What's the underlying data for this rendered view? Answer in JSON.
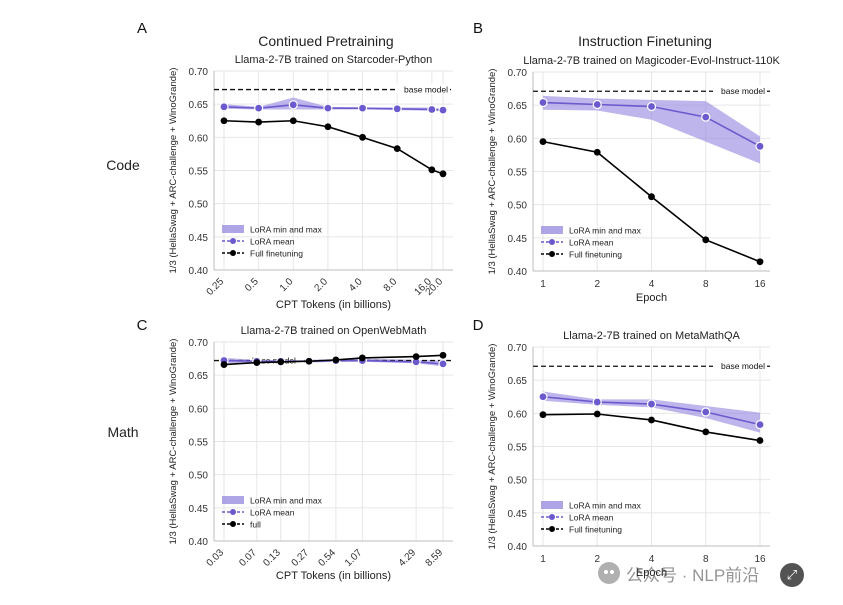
{
  "figure": {
    "col_titles": [
      "Continued Pretraining",
      "Instruction Finetuning"
    ],
    "row_labels": [
      "Code",
      "Math"
    ],
    "panel_letters": [
      "A",
      "B",
      "C",
      "D"
    ],
    "base_model_label": "base model",
    "colors": {
      "lora": "#6a5acd",
      "band": "#9a8ee0",
      "full": "#000000"
    }
  },
  "watermark": {
    "text": "公众号 · NLP前沿",
    "icon": "wechat-icon",
    "badge_icon": "resize-icon"
  },
  "chart_data": [
    {
      "type": "line",
      "panel": "A",
      "title": "Llama-2-7B trained on Starcoder-Python",
      "xlabel": "CPT Tokens (in billions)",
      "ylabel": "1/3 (HellaSwag + ARC-challenge + WinoGrande)",
      "ylim": [
        0.4,
        0.7
      ],
      "yticks": [
        "0.40",
        "0.45",
        "0.50",
        "0.55",
        "0.60",
        "0.65",
        "0.70"
      ],
      "x_scale": "log",
      "x": [
        0.25,
        0.5,
        1.0,
        2.0,
        4.0,
        8.0,
        16.0,
        20.0
      ],
      "x_tick_labels": [
        "0.25",
        "0.5",
        "1.0",
        "2.0",
        "4.0",
        "8.0",
        "16.0",
        "20.0"
      ],
      "base_model": 0.672,
      "band": {
        "name": "LoRA min and max",
        "min": [
          0.643,
          0.642,
          0.642,
          0.642,
          0.642,
          0.641,
          0.64,
          0.639
        ],
        "max": [
          0.65,
          0.646,
          0.66,
          0.646,
          0.645,
          0.645,
          0.645,
          0.643
        ]
      },
      "series": [
        {
          "name": "LoRA mean",
          "values": [
            0.646,
            0.644,
            0.649,
            0.644,
            0.644,
            0.643,
            0.642,
            0.641
          ]
        },
        {
          "name": "Full finetuning",
          "values": [
            0.625,
            0.623,
            0.625,
            0.616,
            0.6,
            0.583,
            0.551,
            0.545
          ]
        }
      ],
      "legend": [
        "LoRA min and max",
        "LoRA mean",
        "Full finetuning"
      ]
    },
    {
      "type": "line",
      "panel": "B",
      "title": "Llama-2-7B trained on Magicoder-Evol-Instruct-110K",
      "xlabel": "Epoch",
      "ylabel": "1/3 (HellaSwag + ARC-challenge + WinoGrande)",
      "ylim": [
        0.4,
        0.7
      ],
      "yticks": [
        "0.40",
        "0.45",
        "0.50",
        "0.55",
        "0.60",
        "0.65",
        "0.70"
      ],
      "x_scale": "log",
      "x": [
        1,
        2,
        4,
        8,
        16
      ],
      "x_tick_labels": [
        "1",
        "2",
        "4",
        "8",
        "16"
      ],
      "base_model": 0.671,
      "band": {
        "name": "LoRA min and max",
        "min": [
          0.643,
          0.642,
          0.628,
          0.595,
          0.562
        ],
        "max": [
          0.664,
          0.66,
          0.658,
          0.656,
          0.603
        ]
      },
      "series": [
        {
          "name": "LoRA mean",
          "values": [
            0.654,
            0.651,
            0.648,
            0.632,
            0.588
          ]
        },
        {
          "name": "Full finetuning",
          "values": [
            0.595,
            0.579,
            0.512,
            0.447,
            0.414
          ]
        }
      ],
      "legend": [
        "LoRA min and max",
        "LoRA mean",
        "Full finetuning"
      ]
    },
    {
      "type": "line",
      "panel": "C",
      "title": "Llama-2-7B trained on OpenWebMath",
      "xlabel": "CPT Tokens (in billions)",
      "ylabel": "1/3 (HellaSwag + ARC-challenge + WinoGrande)",
      "ylim": [
        0.4,
        0.7
      ],
      "yticks": [
        "0.40",
        "0.45",
        "0.50",
        "0.55",
        "0.60",
        "0.65",
        "0.70"
      ],
      "x_scale": "log",
      "x": [
        0.03,
        0.07,
        0.13,
        0.27,
        0.54,
        1.07,
        4.29,
        8.59
      ],
      "x_tick_labels": [
        "0.03",
        "0.07",
        "0.13",
        "0.27",
        "0.54",
        "1.07",
        "4.29",
        "8.59"
      ],
      "base_model": 0.672,
      "band": {
        "name": "LoRA min and max",
        "min": [
          0.668,
          0.669,
          0.669,
          0.669,
          0.67,
          0.67,
          0.668,
          0.663
        ],
        "max": [
          0.676,
          0.673,
          0.673,
          0.673,
          0.674,
          0.675,
          0.673,
          0.672
        ]
      },
      "series": [
        {
          "name": "LoRA mean",
          "values": [
            0.672,
            0.671,
            0.671,
            0.671,
            0.672,
            0.672,
            0.67,
            0.667
          ]
        },
        {
          "name": "full",
          "values": [
            0.666,
            0.669,
            0.67,
            0.671,
            0.673,
            0.676,
            0.678,
            0.68
          ]
        }
      ],
      "legend": [
        "LoRA min and max",
        "LoRA mean",
        "full"
      ]
    },
    {
      "type": "line",
      "panel": "D",
      "title": "Llama-2-7B trained on MetaMathQA",
      "xlabel": "Epoch",
      "ylabel": "1/3 (HellaSwag + ARC-challenge + WinoGrande)",
      "ylim": [
        0.4,
        0.7
      ],
      "yticks": [
        "0.40",
        "0.45",
        "0.50",
        "0.55",
        "0.60",
        "0.65",
        "0.70"
      ],
      "x_scale": "log",
      "x": [
        1,
        2,
        4,
        8,
        16
      ],
      "x_tick_labels": [
        "1",
        "2",
        "4",
        "8",
        "16"
      ],
      "base_model": 0.671,
      "band": {
        "name": "LoRA min and max",
        "min": [
          0.619,
          0.613,
          0.609,
          0.593,
          0.571
        ],
        "max": [
          0.633,
          0.621,
          0.621,
          0.611,
          0.601
        ]
      },
      "series": [
        {
          "name": "LoRA mean",
          "values": [
            0.625,
            0.617,
            0.614,
            0.602,
            0.583
          ]
        },
        {
          "name": "Full finetuning",
          "values": [
            0.598,
            0.599,
            0.59,
            0.572,
            0.559
          ]
        }
      ],
      "legend": [
        "LoRA min and max",
        "LoRA mean",
        "Full finetuning"
      ]
    }
  ]
}
